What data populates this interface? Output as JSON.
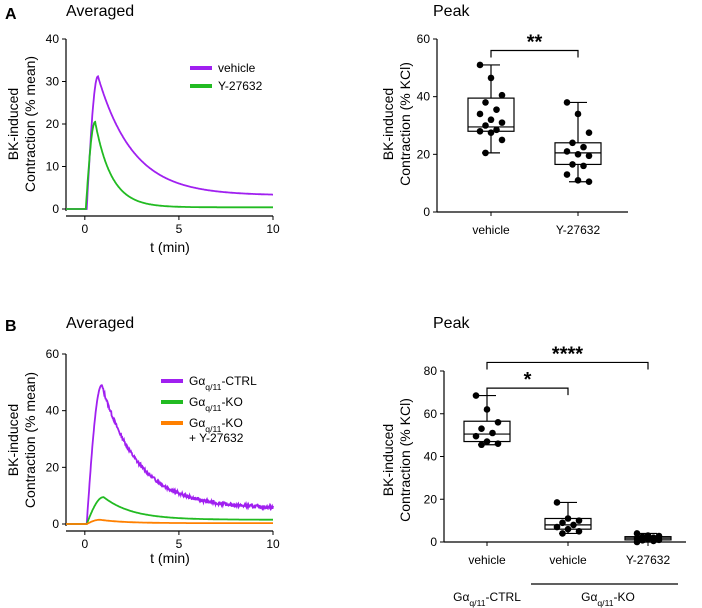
{
  "panels": {
    "a": "A",
    "b": "B"
  },
  "chart_data": [
    {
      "id": "a-avg",
      "type": "line",
      "title": "Averaged",
      "xlabel": "t (min)",
      "ylabel": [
        "BK-induced",
        "Contraction (% mean)"
      ],
      "xlim": [
        -1,
        10
      ],
      "ylim": [
        0,
        40
      ],
      "xticks": [
        0,
        5,
        10
      ],
      "yticks": [
        0,
        10,
        20,
        30,
        40
      ],
      "series": [
        {
          "name": "vehicle",
          "color": "#a020f0",
          "onset": 0.1,
          "peak_t": 0.7,
          "peak": 31.2,
          "tau": 4.3,
          "end": 3.2,
          "noise": 0
        },
        {
          "name": "Y-27632",
          "color": "#22bb22",
          "onset": 0.05,
          "peak_t": 0.55,
          "peak": 20.5,
          "tau": 2.0,
          "end": 0.4,
          "noise": 0
        }
      ]
    },
    {
      "id": "a-peak",
      "type": "box",
      "title": "Peak",
      "ylabel": [
        "BK-induced",
        "Contraction (% KCl)"
      ],
      "ylim": [
        0,
        60
      ],
      "yticks": [
        0,
        20,
        40,
        60
      ],
      "categories": [
        "vehicle",
        "Y-27632"
      ],
      "boxes": [
        {
          "min": 20.5,
          "q1": 28,
          "median": 29.5,
          "q3": 39.5,
          "max": 51,
          "points": [
            51,
            46.5,
            40.5,
            38,
            35.5,
            34,
            32,
            31,
            30,
            28.5,
            28,
            27.5,
            25,
            20.5
          ]
        },
        {
          "min": 10.5,
          "q1": 16.5,
          "median": 20.5,
          "q3": 24,
          "max": 38,
          "points": [
            38,
            34,
            27.5,
            24,
            22.5,
            21,
            20,
            19.5,
            16.5,
            16,
            13,
            11,
            10.5
          ]
        }
      ],
      "sig": [
        {
          "from": 0,
          "to": 1,
          "y": 56,
          "label": "**"
        }
      ]
    },
    {
      "id": "b-avg",
      "type": "line",
      "title": "Averaged",
      "xlabel": "t (min)",
      "ylabel": [
        "BK-induced",
        "Contraction (% mean)"
      ],
      "xlim": [
        -1,
        10
      ],
      "ylim": [
        0,
        60
      ],
      "xticks": [
        0,
        5,
        10
      ],
      "yticks": [
        0,
        20,
        40,
        60
      ],
      "series": [
        {
          "name": "Gα_{q/11}-CTRL",
          "color": "#a020f0",
          "onset": 0.1,
          "peak_t": 0.9,
          "peak": 49,
          "tau": 4.5,
          "end": 5.5,
          "noise": 0.6
        },
        {
          "name": "Gα_{q/11}-KO",
          "color": "#22bb22",
          "onset": 0.1,
          "peak_t": 1.0,
          "peak": 9.5,
          "tau": 3.5,
          "end": 1.5,
          "noise": 0
        },
        {
          "name": "Gα_{q/11}-KO|+ Y-27632",
          "color": "#ff8000",
          "onset": 0.1,
          "peak_t": 0.8,
          "peak": 1.5,
          "tau": 3.0,
          "end": 0.3,
          "noise": 0
        }
      ]
    },
    {
      "id": "b-peak",
      "type": "box",
      "title": "Peak",
      "ylabel": [
        "BK-induced",
        "Contraction (% KCl)"
      ],
      "ylim": [
        0,
        80
      ],
      "yticks": [
        0,
        20,
        40,
        60,
        80
      ],
      "categories": [
        "vehicle",
        "vehicle",
        "Y-27632"
      ],
      "groups": [
        {
          "label": "Gα_{q/11}-CTRL",
          "from": 0,
          "to": 0
        },
        {
          "label": "Gα_{q/11}-KO",
          "from": 1,
          "to": 2
        }
      ],
      "boxes": [
        {
          "min": 45.5,
          "q1": 47,
          "median": 50.5,
          "q3": 56.5,
          "max": 68.5,
          "points": [
            68.5,
            62,
            56,
            53,
            51,
            49.5,
            47,
            46,
            45.5
          ]
        },
        {
          "min": 4,
          "q1": 6,
          "median": 8,
          "q3": 11,
          "max": 18.5,
          "points": [
            18.5,
            11,
            10,
            9,
            8,
            7,
            6,
            5,
            4
          ]
        },
        {
          "min": 0,
          "q1": 1,
          "median": 1.8,
          "q3": 2.5,
          "max": 4,
          "points": [
            4,
            3,
            2.8,
            2.5,
            2,
            1.8,
            1.5,
            1,
            0.8,
            0.5,
            0
          ]
        }
      ],
      "sig": [
        {
          "from": 0,
          "to": 1,
          "y": 72,
          "label": "*"
        },
        {
          "from": 0,
          "to": 2,
          "y": 84,
          "label": "****"
        }
      ]
    }
  ]
}
